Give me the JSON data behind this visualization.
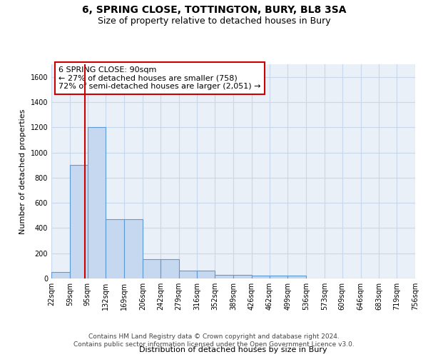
{
  "title": "6, SPRING CLOSE, TOTTINGTON, BURY, BL8 3SA",
  "subtitle": "Size of property relative to detached houses in Bury",
  "xlabel": "Distribution of detached houses by size in Bury",
  "ylabel": "Number of detached properties",
  "bar_values": [
    50,
    900,
    1200,
    470,
    470,
    155,
    155,
    60,
    60,
    30,
    30,
    20,
    20,
    20,
    0,
    0,
    0,
    0,
    0,
    0
  ],
  "bin_edges": [
    22,
    59,
    95,
    132,
    169,
    206,
    242,
    279,
    316,
    352,
    389,
    426,
    462,
    499,
    536,
    573,
    609,
    646,
    683,
    719,
    756
  ],
  "x_tick_labels": [
    "22sqm",
    "59sqm",
    "95sqm",
    "132sqm",
    "169sqm",
    "206sqm",
    "242sqm",
    "279sqm",
    "316sqm",
    "352sqm",
    "389sqm",
    "426sqm",
    "462sqm",
    "499sqm",
    "536sqm",
    "573sqm",
    "609sqm",
    "646sqm",
    "683sqm",
    "719sqm",
    "756sqm"
  ],
  "ylim": [
    0,
    1700
  ],
  "yticks": [
    0,
    200,
    400,
    600,
    800,
    1000,
    1200,
    1400,
    1600
  ],
  "bar_color": "#c5d8f0",
  "bar_edge_color": "#5b9bd5",
  "bar_edge_width": 0.8,
  "property_line_x": 90,
  "property_line_color": "#cc0000",
  "annotation_text": "6 SPRING CLOSE: 90sqm\n← 27% of detached houses are smaller (758)\n72% of semi-detached houses are larger (2,051) →",
  "annotation_box_color": "#ffffff",
  "annotation_box_edge_color": "#cc0000",
  "background_color": "#eaf0f8",
  "grid_color": "#c8d8ec",
  "footer_text": "Contains HM Land Registry data © Crown copyright and database right 2024.\nContains public sector information licensed under the Open Government Licence v3.0.",
  "title_fontsize": 10,
  "subtitle_fontsize": 9,
  "axis_label_fontsize": 8,
  "tick_fontsize": 7,
  "annotation_fontsize": 8,
  "footer_fontsize": 6.5
}
